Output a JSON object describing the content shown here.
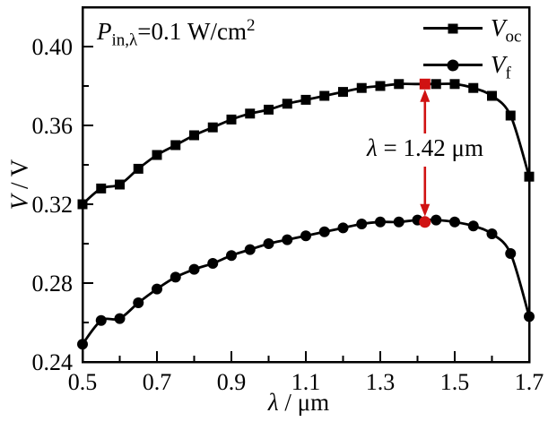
{
  "figure": {
    "background": "#ffffff",
    "axis_color": "#000000"
  },
  "chart_data": {
    "type": "line",
    "title": "",
    "xlabel": {
      "var": "λ",
      "sep": " / ",
      "unit": "μm"
    },
    "ylabel": {
      "var": "V",
      "sep": " / ",
      "unit": "V"
    },
    "xlim": [
      0.5,
      1.7
    ],
    "ylim": [
      0.24,
      0.42
    ],
    "x_major_ticks": [
      0.5,
      0.7,
      0.9,
      1.1,
      1.3,
      1.5,
      1.7
    ],
    "x_major_labels": [
      "0.5",
      "0.7",
      "0.9",
      "1.1",
      "1.3",
      "1.5",
      "1.7"
    ],
    "x_minor_ticks": [
      0.6,
      0.8,
      1.0,
      1.2,
      1.4,
      1.6
    ],
    "y_major_ticks": [
      0.24,
      0.28,
      0.32,
      0.36,
      0.4
    ],
    "y_major_labels": [
      "0.24",
      "0.28",
      "0.32",
      "0.36",
      "0.40"
    ],
    "y_minor_ticks": [
      0.26,
      0.3,
      0.34,
      0.38
    ],
    "grid": false,
    "legend_position": "upper right",
    "x": [
      0.5,
      0.55,
      0.6,
      0.65,
      0.7,
      0.75,
      0.8,
      0.85,
      0.9,
      0.95,
      1.0,
      1.05,
      1.1,
      1.15,
      1.2,
      1.25,
      1.3,
      1.35,
      1.4,
      1.45,
      1.5,
      1.55,
      1.6,
      1.65,
      1.7
    ],
    "series": [
      {
        "name": "V_oc",
        "label_var": "V",
        "label_sub": "oc",
        "marker": "square",
        "color": "#000000",
        "values": [
          0.32,
          0.328,
          0.33,
          0.338,
          0.345,
          0.35,
          0.355,
          0.359,
          0.363,
          0.366,
          0.368,
          0.371,
          0.373,
          0.375,
          0.377,
          0.379,
          0.38,
          0.381,
          0.381,
          0.381,
          0.381,
          0.379,
          0.375,
          0.365,
          0.334
        ],
        "skip_marker_at": [
          1.4
        ]
      },
      {
        "name": "V_f",
        "label_var": "V",
        "label_sub": "f",
        "marker": "circle",
        "color": "#000000",
        "values": [
          0.249,
          0.261,
          0.262,
          0.27,
          0.277,
          0.283,
          0.287,
          0.29,
          0.294,
          0.297,
          0.3,
          0.302,
          0.304,
          0.306,
          0.308,
          0.31,
          0.311,
          0.311,
          0.312,
          0.312,
          0.311,
          0.309,
          0.305,
          0.295,
          0.263
        ],
        "skip_marker_at": []
      }
    ],
    "highlight": {
      "x": 1.42,
      "voc_value": 0.381,
      "vf_value": 0.311,
      "color": "#d01212",
      "label": {
        "var": "λ",
        "rest": " = 1.42 μm"
      }
    },
    "annotation_pin": {
      "var": "P",
      "sub": "in,λ",
      "rest": "=0.1 W/cm",
      "sup": "2"
    }
  }
}
